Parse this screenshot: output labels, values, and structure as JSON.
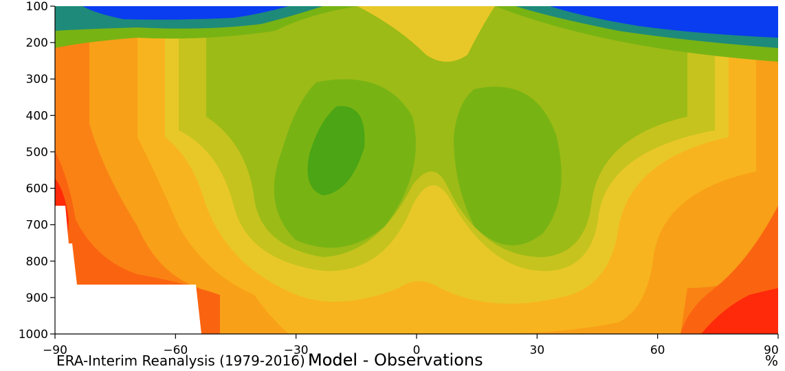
{
  "chart_data": {
    "type": "contour",
    "x_ticks": [
      "−90",
      "−60",
      "−30",
      "0",
      "30",
      "60",
      "90"
    ],
    "x_tick_values": [
      -90,
      -60,
      -30,
      0,
      30,
      60,
      90
    ],
    "y_ticks": [
      "100",
      "200",
      "300",
      "400",
      "500",
      "600",
      "700",
      "800",
      "900",
      "1000"
    ],
    "y_tick_values": [
      100,
      200,
      300,
      400,
      500,
      600,
      700,
      800,
      900,
      1000
    ],
    "xlim": [
      -90,
      90
    ],
    "ylim": [
      1000,
      100
    ],
    "y_inverted": true,
    "texts": {
      "source": "ERA-Interim Reanalysis (1979-2016)",
      "model": "Model",
      "title": "Model - Observations",
      "unit": "%"
    },
    "colors": {
      "blue": "#0a3cf0",
      "teal": "#1e8a7a",
      "green_dark": "#4ba514",
      "green": "#78b314",
      "olive": "#9cbb16",
      "yellow_green": "#c6c31e",
      "yellow": "#e8c828",
      "gold": "#f8b41e",
      "orange_light": "#f8a018",
      "orange": "#fa8214",
      "orange_dark": "#fa6410",
      "red": "#ff2a0a"
    }
  }
}
